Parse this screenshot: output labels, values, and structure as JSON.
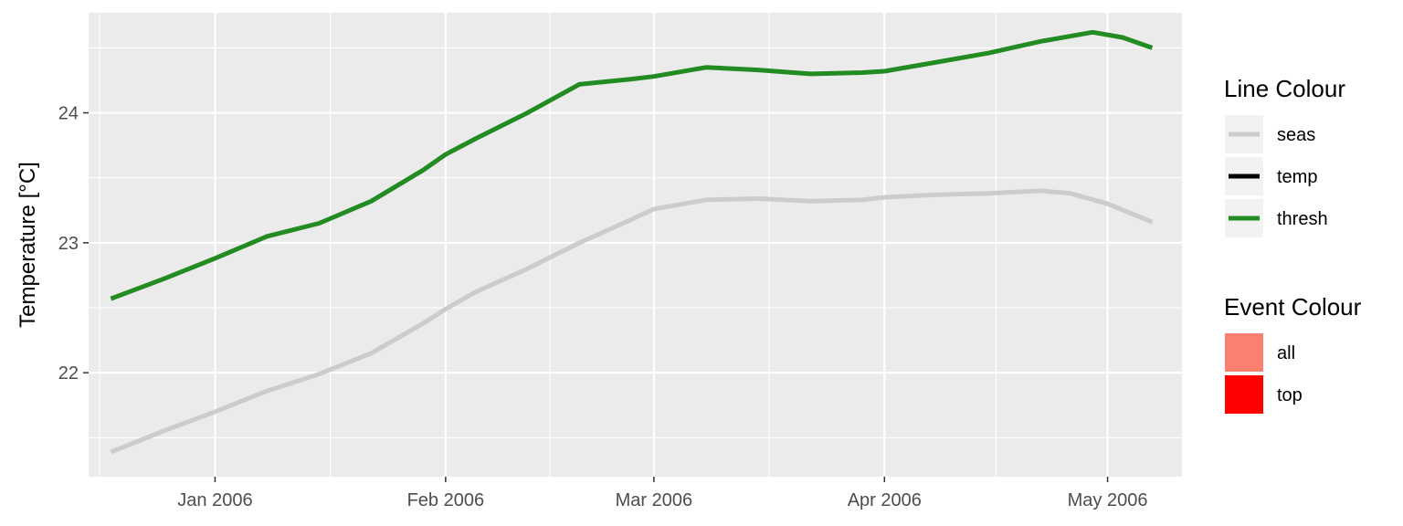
{
  "chart_data": {
    "type": "line",
    "ylabel": "Temperature [°C]",
    "xlabel": "",
    "x_axis_type": "date",
    "xlim": [
      "2005-12-15",
      "2006-05-11"
    ],
    "ylim": [
      21.2,
      24.77
    ],
    "x_ticks": [
      {
        "date": "2006-01-01",
        "label": "Jan 2006"
      },
      {
        "date": "2006-02-01",
        "label": "Feb 2006"
      },
      {
        "date": "2006-03-01",
        "label": "Mar 2006"
      },
      {
        "date": "2006-04-01",
        "label": "Apr 2006"
      },
      {
        "date": "2006-05-01",
        "label": "May 2006"
      }
    ],
    "y_ticks": [
      22,
      23,
      24
    ],
    "grid": true,
    "series": [
      {
        "name": "seas",
        "color": "#cccccc",
        "points": [
          [
            "2005-12-18",
            21.39
          ],
          [
            "2005-12-25",
            21.55
          ],
          [
            "2006-01-01",
            21.7
          ],
          [
            "2006-01-08",
            21.86
          ],
          [
            "2006-01-15",
            21.99
          ],
          [
            "2006-01-22",
            22.15
          ],
          [
            "2006-01-29",
            22.38
          ],
          [
            "2006-02-01",
            22.49
          ],
          [
            "2006-02-05",
            22.62
          ],
          [
            "2006-02-12",
            22.8
          ],
          [
            "2006-02-19",
            23.0
          ],
          [
            "2006-02-26",
            23.18
          ],
          [
            "2006-03-01",
            23.26
          ],
          [
            "2006-03-08",
            23.33
          ],
          [
            "2006-03-15",
            23.34
          ],
          [
            "2006-03-22",
            23.32
          ],
          [
            "2006-03-29",
            23.33
          ],
          [
            "2006-04-01",
            23.35
          ],
          [
            "2006-04-08",
            23.37
          ],
          [
            "2006-04-15",
            23.38
          ],
          [
            "2006-04-22",
            23.4
          ],
          [
            "2006-04-26",
            23.38
          ],
          [
            "2006-05-01",
            23.3
          ],
          [
            "2006-05-07",
            23.16
          ]
        ]
      },
      {
        "name": "temp",
        "color": "#000000",
        "points": []
      },
      {
        "name": "thresh",
        "color": "#228b22",
        "points": [
          [
            "2005-12-18",
            22.57
          ],
          [
            "2005-12-25",
            22.72
          ],
          [
            "2006-01-01",
            22.88
          ],
          [
            "2006-01-08",
            23.05
          ],
          [
            "2006-01-15",
            23.15
          ],
          [
            "2006-01-22",
            23.32
          ],
          [
            "2006-01-29",
            23.56
          ],
          [
            "2006-02-01",
            23.68
          ],
          [
            "2006-02-05",
            23.8
          ],
          [
            "2006-02-12",
            24.0
          ],
          [
            "2006-02-19",
            24.22
          ],
          [
            "2006-02-26",
            24.26
          ],
          [
            "2006-03-01",
            24.28
          ],
          [
            "2006-03-08",
            24.35
          ],
          [
            "2006-03-15",
            24.33
          ],
          [
            "2006-03-22",
            24.3
          ],
          [
            "2006-03-29",
            24.31
          ],
          [
            "2006-04-01",
            24.32
          ],
          [
            "2006-04-08",
            24.39
          ],
          [
            "2006-04-15",
            24.46
          ],
          [
            "2006-04-22",
            24.55
          ],
          [
            "2006-04-29",
            24.62
          ],
          [
            "2006-05-03",
            24.58
          ],
          [
            "2006-05-07",
            24.5
          ]
        ]
      }
    ],
    "legends": [
      {
        "title": "Line Colour",
        "type": "line",
        "entries": [
          {
            "label": "seas",
            "color": "#cccccc"
          },
          {
            "label": "temp",
            "color": "#000000"
          },
          {
            "label": "thresh",
            "color": "#228b22"
          }
        ]
      },
      {
        "title": "Event Colour",
        "type": "fill",
        "entries": [
          {
            "label": "all",
            "color": "#fa8072"
          },
          {
            "label": "top",
            "color": "#ff0000"
          }
        ]
      }
    ],
    "legend_placement": "right",
    "panel_background": "#ebebeb",
    "grid_color": "#ffffff"
  }
}
